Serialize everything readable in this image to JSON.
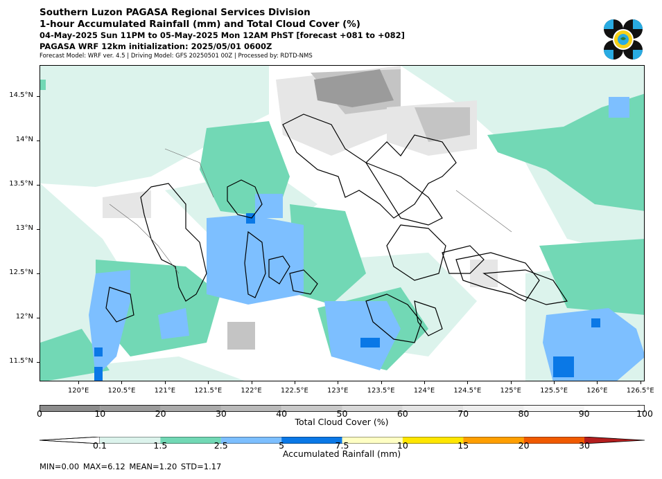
{
  "header": {
    "line1": "Southern Luzon PAGASA Regional Services Division",
    "line2": "1-hour Accumulated Rainfall (mm) and Total Cloud Cover (%)",
    "line3": "04-May-2025 Sun 11PM to 05-May-2025 Mon 12AM PhST [forecast +081 to +082]",
    "line4": "PAGASA WRF 12km initialization: 2025/05/01 0600Z",
    "line5": "Forecast Model: WRF ver. 4.5 | Driving Model: GFS 20250501 00Z | Processed by: RDTD-NMS"
  },
  "map": {
    "lon_range": [
      119.55,
      126.55
    ],
    "lat_range": [
      11.28,
      14.85
    ],
    "lat_labels": [
      "14.5°N",
      "14°N",
      "13.5°N",
      "13°N",
      "12.5°N",
      "12°N",
      "11.5°N"
    ],
    "lat_values": [
      14.5,
      14.0,
      13.5,
      13.0,
      12.5,
      12.0,
      11.5
    ],
    "lon_labels": [
      "120°E",
      "120.5°E",
      "121°E",
      "121.5°E",
      "122°E",
      "122.5°E",
      "123°E",
      "123.5°E",
      "124°E",
      "124.5°E",
      "125°E",
      "125.5°E",
      "126°E",
      "126.5°E"
    ],
    "lon_values": [
      120.0,
      120.5,
      121.0,
      121.5,
      122.0,
      122.5,
      123.0,
      123.5,
      124.0,
      124.5,
      125.0,
      125.5,
      126.0,
      126.5
    ],
    "colors": {
      "rain_0.1": "#dcf3ec",
      "rain_1.5": "#72d8b5",
      "rain_2.5": "#7dbfff",
      "rain_5": "#0a78e6",
      "cloud_dark": "#9b9b9b",
      "cloud_mid": "#c4c4c4",
      "cloud_light": "#e6e6e6",
      "coast": "#000000"
    }
  },
  "cloud_colorbar": {
    "label": "Total Cloud Cover (%)",
    "ticks": [
      "0",
      "10",
      "20",
      "30",
      "40",
      "50",
      "60",
      "70",
      "80",
      "90",
      "100"
    ],
    "colors": [
      "#8c8c8c",
      "#9b9b9b",
      "#aaaaaa",
      "#b9b9b9",
      "#c8c8c8",
      "#d7d7d7",
      "#e3e3e3",
      "#ededed",
      "#f5f5f5",
      "#ffffff"
    ]
  },
  "rain_colorbar": {
    "label": "Accumulated Rainfall (mm)",
    "ticks": [
      "0.1",
      "1.5",
      "2.5",
      "5",
      "7.5",
      "10",
      "15",
      "20",
      "30"
    ],
    "colors": [
      "#dcf3ec",
      "#72d8b5",
      "#7dbfff",
      "#0a78e6",
      "#ffffc4",
      "#ffe600",
      "#ff9f00",
      "#f05a00",
      "#b41e1e"
    ]
  },
  "stats": {
    "text": "MIN=0.00   MAX=6.12   MEAN=1.20   STD=1.17"
  }
}
